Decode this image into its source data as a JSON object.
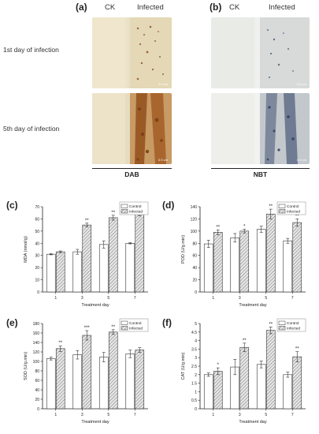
{
  "panels": {
    "a": "(a)",
    "b": "(b)",
    "c": "(c)",
    "d": "(d)",
    "e": "(e)",
    "f": "(f)"
  },
  "photos": {
    "col_ck": "CK",
    "col_infected": "Infected",
    "row_1": "1st day of infection",
    "row_5": "5th day of infection",
    "stain_a": "DAB",
    "stain_b": "NBT",
    "colors": {
      "leaf_base": "#d9cfb4",
      "dab_spot": "#8a4a1c",
      "nbt_spot": "#3a4868",
      "bg": "#f3f3f3"
    }
  },
  "chart_data": [
    {
      "id": "c",
      "type": "bar",
      "title": "",
      "ylabel": "MDA (nmol/g)",
      "xlabel": "Treatment day",
      "categories": [
        "1",
        "3",
        "5",
        "7"
      ],
      "ylim": [
        0,
        70
      ],
      "yticks": [
        0,
        10,
        20,
        30,
        40,
        50,
        60,
        70
      ],
      "series": [
        {
          "name": "Control",
          "values": [
            31,
            33,
            39,
            40
          ],
          "errors": [
            0.5,
            2,
            3,
            0.5
          ]
        },
        {
          "name": "Infected",
          "values": [
            33,
            55,
            61,
            65
          ],
          "errors": [
            0.7,
            1.5,
            2,
            2.5
          ]
        }
      ],
      "significance": [
        "",
        "**",
        "**",
        "***"
      ],
      "legend": "top-right"
    },
    {
      "id": "d",
      "type": "bar",
      "title": "",
      "ylabel": "POD (U/g.min)",
      "xlabel": "Treatment day",
      "categories": [
        "1",
        "3",
        "5",
        "7"
      ],
      "ylim": [
        0,
        140
      ],
      "yticks": [
        0,
        20,
        40,
        60,
        80,
        100,
        120,
        140
      ],
      "series": [
        {
          "name": "Control",
          "values": [
            79,
            89,
            103,
            84
          ],
          "errors": [
            6,
            7,
            5,
            4
          ]
        },
        {
          "name": "Infected",
          "values": [
            98,
            100,
            128,
            114
          ],
          "errors": [
            4,
            3,
            8,
            6
          ]
        }
      ],
      "significance": [
        "**",
        "*",
        "**",
        "**"
      ],
      "legend": "top-right"
    },
    {
      "id": "e",
      "type": "bar",
      "title": "",
      "ylabel": "SOD (U/g.min)",
      "xlabel": "Treatment day",
      "categories": [
        "1",
        "3",
        "5",
        "7"
      ],
      "ylim": [
        0,
        180
      ],
      "yticks": [
        0,
        20,
        40,
        60,
        80,
        100,
        120,
        140,
        160,
        180
      ],
      "series": [
        {
          "name": "Control",
          "values": [
            106,
            114,
            109,
            116
          ],
          "errors": [
            3,
            9,
            10,
            8
          ]
        },
        {
          "name": "Infected",
          "values": [
            127,
            155,
            162,
            124
          ],
          "errors": [
            6,
            10,
            5,
            5
          ]
        }
      ],
      "significance": [
        "**",
        "***",
        "**",
        ""
      ],
      "legend": "top-right"
    },
    {
      "id": "f",
      "type": "bar",
      "title": "",
      "ylabel": "CAT (U/g.min)",
      "xlabel": "Treatment day",
      "categories": [
        "1",
        "3",
        "5",
        "7"
      ],
      "ylim": [
        0,
        5
      ],
      "yticks": [
        0,
        0.5,
        1,
        1.5,
        2,
        2.5,
        3,
        3.5,
        4,
        4.5,
        5
      ],
      "series": [
        {
          "name": "Control",
          "values": [
            2.0,
            2.45,
            2.6,
            2.0
          ],
          "errors": [
            0.1,
            0.45,
            0.2,
            0.15
          ]
        },
        {
          "name": "Infected",
          "values": [
            2.2,
            3.6,
            4.6,
            3.05
          ],
          "errors": [
            0.2,
            0.25,
            0.2,
            0.3
          ]
        }
      ],
      "significance": [
        "*",
        "**",
        "**",
        "**"
      ],
      "legend": "top-right"
    }
  ]
}
